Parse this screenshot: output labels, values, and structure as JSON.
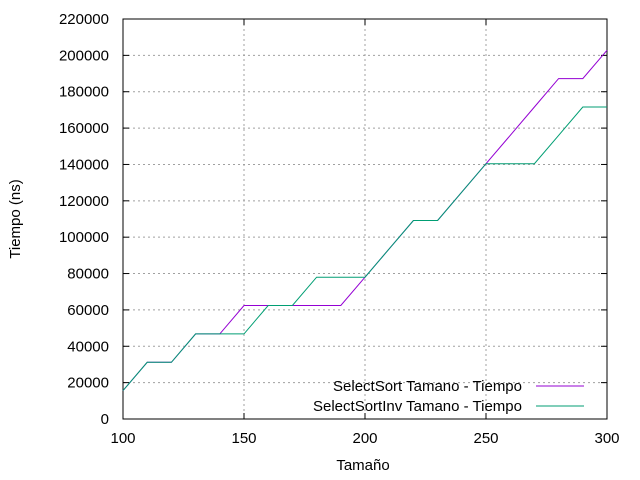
{
  "chart_data": {
    "type": "line",
    "title": "",
    "xlabel": "Tamaño",
    "ylabel": "Tiempo (ns)",
    "xlim": [
      100,
      300
    ],
    "ylim": [
      0,
      220000
    ],
    "xticks": [
      100,
      150,
      200,
      250,
      300
    ],
    "yticks": [
      0,
      20000,
      40000,
      60000,
      80000,
      100000,
      120000,
      140000,
      160000,
      180000,
      200000,
      220000
    ],
    "grid": true,
    "legend_position": "bottom-right",
    "series": [
      {
        "name": "SelectSort Tamano - Tiempo",
        "color": "#9400d3",
        "x": [
          100,
          110,
          120,
          130,
          140,
          150,
          160,
          170,
          180,
          190,
          200,
          210,
          220,
          230,
          240,
          250,
          260,
          270,
          280,
          290,
          300
        ],
        "y": [
          15600,
          31200,
          31200,
          46800,
          46800,
          62400,
          62400,
          62400,
          62400,
          62400,
          78000,
          93600,
          109200,
          109200,
          124800,
          140400,
          156000,
          171600,
          187200,
          187200,
          202800
        ]
      },
      {
        "name": "SelectSortInv Tamano - Tiempo",
        "color": "#009e73",
        "x": [
          100,
          110,
          120,
          130,
          140,
          150,
          160,
          170,
          180,
          190,
          200,
          210,
          220,
          230,
          240,
          250,
          260,
          270,
          280,
          290,
          300
        ],
        "y": [
          15600,
          31200,
          31200,
          46800,
          46800,
          46800,
          62400,
          62400,
          78000,
          78000,
          78000,
          93600,
          109200,
          109200,
          124800,
          140400,
          140400,
          140400,
          156000,
          171600,
          171600
        ]
      }
    ]
  }
}
